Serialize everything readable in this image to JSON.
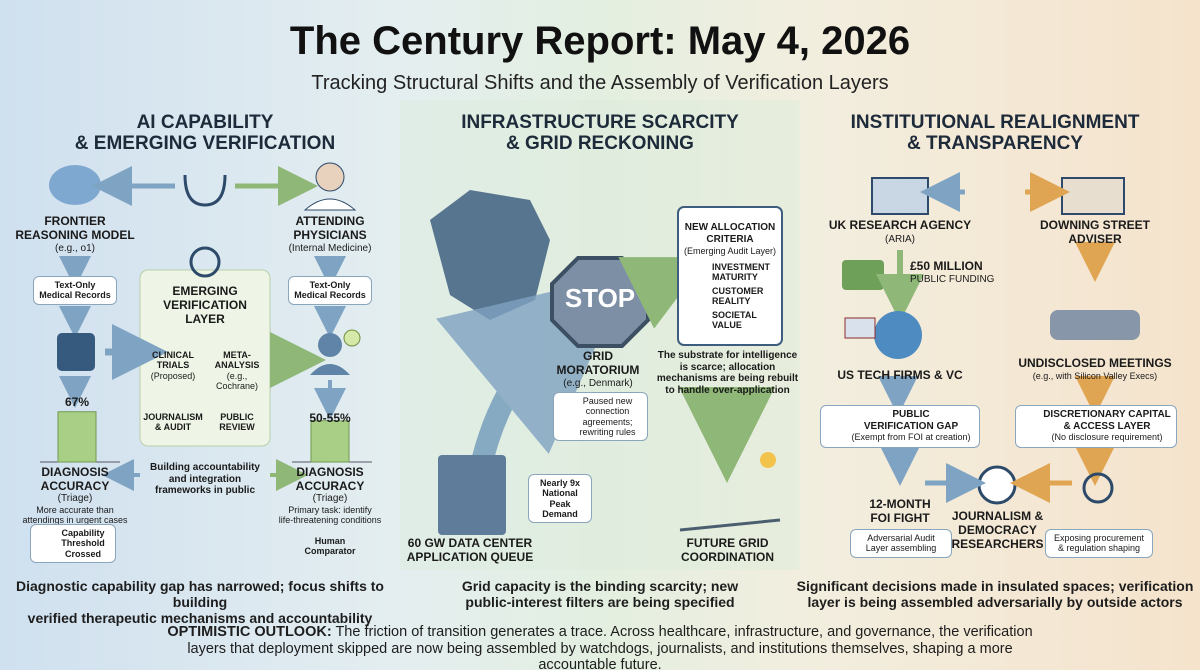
{
  "header": {
    "title": "The Century Report: May 4, 2026",
    "subtitle": "Tracking Structural Shifts and the Assembly of Verification Layers"
  },
  "ai_capability": {
    "heading": "AI CAPABILITY\n& EMERGING VERIFICATION",
    "model": {
      "label": "FRONTIER\nREASONING MODEL",
      "note": "(e.g., o1)"
    },
    "physicians": {
      "label": "ATTENDING\nPHYSICIANS",
      "note": "(Internal Medicine)"
    },
    "records_left": "Text-Only\nMedical Records",
    "records_right": "Text-Only\nMedical Records",
    "layer": {
      "label": "EMERGING\nVERIFICATION\nLAYER",
      "items": [
        {
          "label": "CLINICAL\nTRIALS",
          "note": "(Proposed)"
        },
        {
          "label": "META-\nANALYSIS",
          "note": "(e.g., Cochrane)"
        },
        {
          "label": "JOURNALISM\n& AUDIT"
        },
        {
          "label": "PUBLIC\nREVIEW"
        }
      ]
    },
    "ai_accuracy": {
      "label": "67%",
      "value": 67
    },
    "human_accuracy": {
      "label": "50-55%",
      "low": 50,
      "high": 55
    },
    "ai_result": {
      "label": "DIAGNOSIS\nACCURACY",
      "note": "(Triage)",
      "detail": "More accurate than\nattendings in urgent cases"
    },
    "human_result": {
      "label": "DIAGNOSIS\nACCURACY",
      "note": "(Triage)",
      "detail": "Primary task: identify\nlife-threatening conditions"
    },
    "frameworks": "Building accountability\nand integration\nframeworks in public",
    "threshold": "Capability\nThreshold\nCrossed",
    "comparator": "Human\nComparator",
    "caption": "Diagnostic capability gap has narrowed; focus shifts to building\nverified therapeutic mechanisms and accountability"
  },
  "infrastructure": {
    "heading": "INFRASTRUCTURE SCARCITY\n& GRID RECKONING",
    "stop": "STOP",
    "moratorium": {
      "label": "GRID\nMORATORIUM",
      "note": "(e.g., Denmark)"
    },
    "paused": "Paused new\nconnection\nagreements;\nrewriting rules",
    "criteria": {
      "label": "NEW ALLOCATION\nCRITERIA",
      "note": "(Emerging Audit Layer)",
      "items": [
        "INVESTMENT\nMATURITY",
        "CUSTOMER\nREALITY",
        "SOCIETAL\nVALUE"
      ]
    },
    "substrate": "The substrate for intelligence\nis scarce; allocation\nmechanisms are being rebuilt\nto handle over-application",
    "demand": "Nearly 9x\nNational Peak\nDemand",
    "queue": "60 GW DATA CENTER\nAPPLICATION QUEUE",
    "future": "FUTURE GRID\nCOORDINATION",
    "caption": "Grid capacity is the binding scarcity; new\npublic-interest filters are being specified"
  },
  "institutional": {
    "heading": "INSTITUTIONAL REALIGNMENT\n& TRANSPARENCY",
    "agency": {
      "label": "UK RESEARCH AGENCY",
      "note": "(ARIA)"
    },
    "adviser": "DOWNING STREET\nADVISER",
    "funding": {
      "label": "£50 MILLION",
      "note": "PUBLIC FUNDING"
    },
    "us_tech": "US TECH FIRMS & VC",
    "meetings": {
      "label": "UNDISCLOSED MEETINGS",
      "note": "(e.g., with Silicon Valley Execs)"
    },
    "gap": {
      "label": "PUBLIC\nVERIFICATION GAP",
      "note": "(Exempt from FOI at creation)"
    },
    "discretionary": {
      "label": "DISCRETIONARY CAPITAL\n& ACCESS LAYER",
      "note": "(No disclosure requirement)"
    },
    "foi": "12-MONTH\nFOI FIGHT",
    "adversarial": "Adversarial Audit\nLayer assembling",
    "researchers": "JOURNALISM &\nDEMOCRACY\nRESEARCHERS",
    "exposing": "Exposing procurement\n& regulation shaping",
    "caption": "Significant decisions made in insulated spaces; verification\nlayer is being assembled adversarially by outside actors"
  },
  "footer": {
    "lead": "OPTIMISTIC OUTLOOK:",
    "text": "The friction of transition generates a trace. Across healthcare, infrastructure, and governance, the verification layers that deployment skipped are now being assembled by watchdogs, journalists, and institutions themselves, shaping a more accountable future."
  }
}
